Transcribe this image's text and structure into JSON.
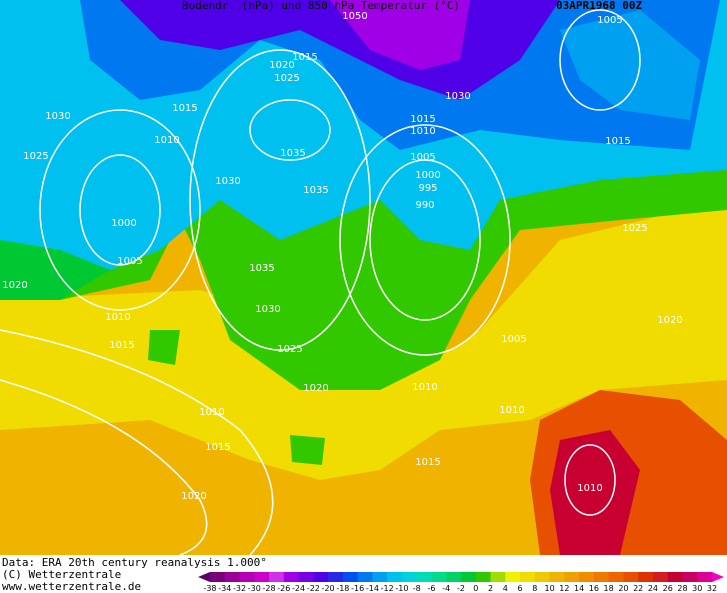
{
  "header": {
    "title": "Bodendr. (hPa) und 850 hPa Temperatur (°C)",
    "date": "03APR1968 00Z"
  },
  "isobars": [
    "1050",
    "1005",
    "1015",
    "1020",
    "1025",
    "1030",
    "1015",
    "1030",
    "1015",
    "1010",
    "1010",
    "1015",
    "1025",
    "1035",
    "1005",
    "1030",
    "1000",
    "995",
    "1035",
    "990",
    "1000",
    "1025",
    "1005",
    "1035",
    "1020",
    "1030",
    "1010",
    "1015",
    "1025",
    "1005",
    "1020",
    "1020",
    "1010",
    "1010",
    "1010",
    "1015",
    "1015",
    "1020",
    "1010"
  ],
  "footer": {
    "source": "Data: ERA 20th century reanalysis 1.000°",
    "copyright": "(C) Wetterzentrale",
    "url": "www.wetterzentrale.de"
  },
  "colorbar": {
    "labels": [
      -38,
      -34,
      -32,
      -30,
      -28,
      -26,
      -24,
      -22,
      -20,
      -18,
      -16,
      -14,
      -12,
      -10,
      -8,
      -6,
      -4,
      -2,
      0,
      2,
      4,
      6,
      8,
      10,
      12,
      14,
      16,
      18,
      20,
      22,
      24,
      26,
      28,
      30,
      32
    ],
    "colors": [
      "#5a0060",
      "#7a007a",
      "#9a009a",
      "#b400b4",
      "#cc00cc",
      "#d230e6",
      "#a000e6",
      "#7800e6",
      "#5000e6",
      "#2828e6",
      "#0050f0",
      "#0078f0",
      "#00a0f0",
      "#00c0f0",
      "#00d2dc",
      "#00dcb4",
      "#00dc8c",
      "#00d264",
      "#00c832",
      "#32c800",
      "#a0dc00",
      "#f0f000",
      "#f0dc00",
      "#f0c800",
      "#f0b400",
      "#f0a000",
      "#f08c00",
      "#f07800",
      "#f06400",
      "#e65000",
      "#dc3200",
      "#d21e1e",
      "#c80032",
      "#c80064",
      "#dc0096",
      "#f000c8"
    ]
  }
}
